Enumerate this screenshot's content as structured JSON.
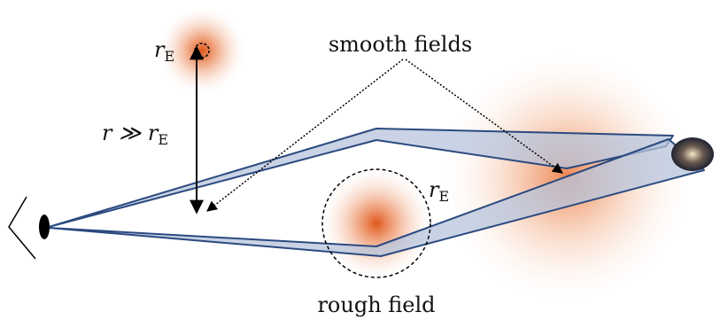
{
  "labels": {
    "smooth": "smooth fields",
    "rough": "rough field",
    "re_small": {
      "symbol": "r",
      "subscript": "E"
    },
    "re_large": {
      "symbol": "r",
      "subscript": "E"
    },
    "distance": {
      "symbol": "r ≫ r",
      "subscript": "E"
    }
  }
}
